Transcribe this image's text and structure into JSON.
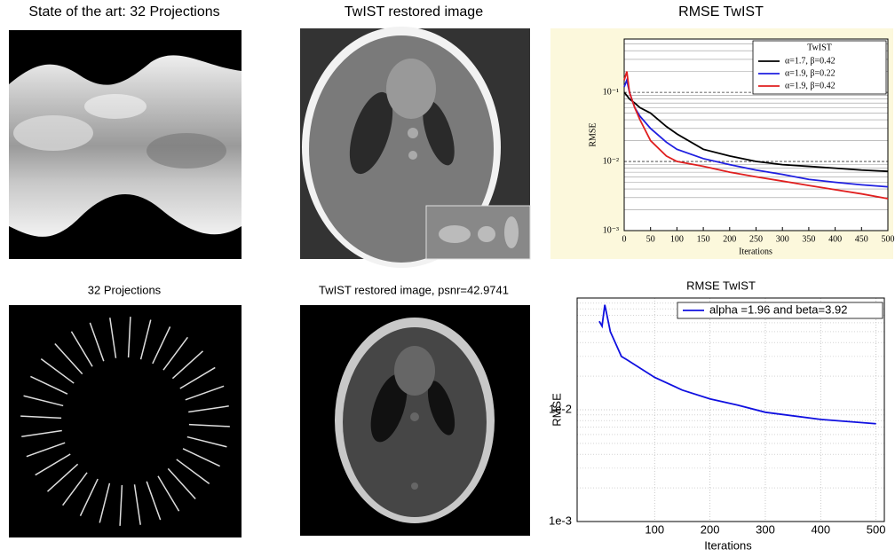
{
  "panels": [
    {
      "title": "State of the art: 32 Projections"
    },
    {
      "title": "TwIST restored image"
    },
    {
      "title": "32 Projections"
    },
    {
      "title": "TwIST restored image, psnr=42.9741"
    }
  ],
  "chart_data": [
    {
      "type": "line",
      "title": "RMSE TwIST",
      "x_label": "Iterations",
      "y_label": "RMSE",
      "legend_title": "TwIST",
      "legend": "upper right",
      "log_y": true,
      "grid": true,
      "x": [
        0,
        5,
        10,
        20,
        30,
        50,
        80,
        100,
        150,
        200,
        250,
        300,
        350,
        400,
        450,
        500
      ],
      "series": [
        {
          "name": "α=1.7, β=0.42",
          "color": "#000000",
          "values": [
            0.1,
            0.09,
            0.08,
            0.07,
            0.06,
            0.05,
            0.032,
            0.025,
            0.015,
            0.012,
            0.01,
            0.009,
            0.0085,
            0.008,
            0.0075,
            0.0072
          ]
        },
        {
          "name": "α=1.9, β=0.22",
          "color": "#1f1fe0",
          "values": [
            0.12,
            0.15,
            0.1,
            0.06,
            0.045,
            0.03,
            0.019,
            0.015,
            0.011,
            0.009,
            0.0075,
            0.0065,
            0.0055,
            0.005,
            0.0046,
            0.0043
          ]
        },
        {
          "name": "α=1.9, β=0.42",
          "color": "#e01f1f",
          "values": [
            0.15,
            0.2,
            0.1,
            0.06,
            0.04,
            0.02,
            0.012,
            0.01,
            0.0085,
            0.007,
            0.006,
            0.0052,
            0.0045,
            0.0039,
            0.0034,
            0.0029
          ]
        }
      ],
      "xlim": [
        0,
        500
      ],
      "ylim": [
        0.001,
        0.59
      ],
      "xticks": [
        0,
        50,
        100,
        150,
        200,
        250,
        300,
        350,
        400,
        450,
        500
      ],
      "yticks": [
        {
          "value": 0.001,
          "label": "10⁻³"
        },
        {
          "value": 0.01,
          "label": "10⁻²"
        },
        {
          "value": 0.1,
          "label": "10⁻¹"
        }
      ]
    },
    {
      "type": "line",
      "title": "RMSE TwIST",
      "x_label": "Iterations",
      "y_label": "RMSE",
      "legend": "upper right",
      "log_y": true,
      "grid": true,
      "x": [
        0,
        5,
        10,
        20,
        40,
        50,
        100,
        150,
        200,
        250,
        300,
        400,
        500
      ],
      "series": [
        {
          "name": "alpha =1.96 and beta=3.92",
          "color": "#1010e0",
          "values": [
            0.062,
            0.056,
            0.087,
            0.05,
            0.03,
            0.028,
            0.0195,
            0.015,
            0.0125,
            0.011,
            0.0095,
            0.0082,
            0.0075
          ]
        }
      ],
      "xlim": [
        -40,
        515
      ],
      "ylim": [
        0.001,
        0.1
      ],
      "xticks": [
        100,
        200,
        300,
        400,
        500
      ],
      "yticks": [
        {
          "value": 0.001,
          "label": "1e-3"
        },
        {
          "value": 0.01,
          "label": "1e-2"
        }
      ]
    }
  ]
}
